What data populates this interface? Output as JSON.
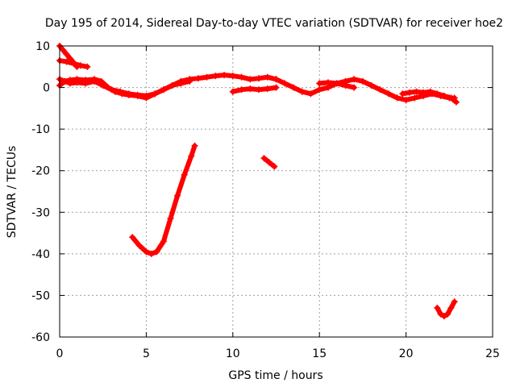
{
  "chart_data": {
    "type": "line",
    "title": "Day 195 of 2014, Sidereal Day-to-day VTEC variation (SDTVAR) for receiver hoe2",
    "xlabel": "GPS time / hours",
    "ylabel": "SDTVAR / TECUs",
    "xlim": [
      0,
      25
    ],
    "ylim": [
      -60,
      10
    ],
    "xticks": [
      "0",
      "5",
      "10",
      "15",
      "20",
      "25"
    ],
    "yticks": [
      "10",
      "0",
      "-10",
      "-20",
      "-30",
      "-40",
      "-50",
      "-60"
    ],
    "grid": true,
    "series_color": "#ff0000",
    "series": [
      {
        "x": [
          0.0,
          0.3,
          0.6,
          1.0,
          1.5,
          2.0,
          2.5,
          3.0,
          3.5,
          4.0,
          4.5,
          5.0,
          5.5,
          6.0,
          6.5,
          7.0,
          7.5,
          8.0,
          8.5,
          9.0,
          9.5,
          10.0,
          10.5,
          11.0,
          11.5,
          12.0,
          12.5
        ],
        "y": [
          0.5,
          1.5,
          1.0,
          1.2,
          1.0,
          1.5,
          0.5,
          -0.5,
          -1.0,
          -1.5,
          -1.8,
          -2.0,
          -1.5,
          -0.5,
          0.5,
          1.5,
          2.0,
          2.2,
          2.5,
          2.8,
          3.0,
          2.8,
          2.5,
          2.0,
          2.2,
          2.5,
          2.0
        ]
      },
      {
        "x": [
          0.0,
          0.3,
          0.6,
          1.0,
          1.5,
          2.0,
          2.4,
          2.8,
          3.2,
          3.6,
          4.0,
          4.5,
          5.0,
          5.5,
          6.0,
          6.5,
          7.0,
          7.5
        ],
        "y": [
          2.0,
          1.5,
          1.8,
          2.0,
          1.8,
          2.0,
          1.5,
          0.0,
          -1.0,
          -1.5,
          -1.8,
          -2.0,
          -2.5,
          -1.5,
          -0.5,
          0.5,
          1.0,
          1.5
        ]
      },
      {
        "x": [
          0.0,
          0.2,
          0.4,
          0.6,
          0.8,
          1.0
        ],
        "y": [
          10.0,
          9.0,
          8.0,
          7.0,
          6.0,
          5.0
        ]
      },
      {
        "x": [
          0.0,
          0.4,
          0.8,
          1.2,
          1.6
        ],
        "y": [
          6.5,
          6.2,
          5.8,
          5.3,
          5.0
        ]
      },
      {
        "x": [
          4.2,
          4.6,
          5.0,
          5.3,
          5.6,
          6.0,
          6.4,
          6.8,
          7.2,
          7.6,
          7.8
        ],
        "y": [
          -36.0,
          -38.0,
          -39.5,
          -40.0,
          -39.5,
          -37.0,
          -31.5,
          -26.0,
          -21.0,
          -16.5,
          -14.0
        ]
      },
      {
        "x": [
          10.0,
          10.5,
          11.0,
          11.5,
          12.0,
          12.5
        ],
        "y": [
          -1.0,
          -0.5,
          -0.3,
          -0.5,
          -0.3,
          0.0
        ]
      },
      {
        "x": [
          11.8,
          12.1,
          12.4
        ],
        "y": [
          -17.0,
          -18.0,
          -19.0
        ]
      },
      {
        "x": [
          12.5,
          13.0,
          13.5,
          14.0,
          14.5,
          15.0,
          15.5,
          16.0,
          16.5,
          17.0,
          17.5,
          18.0,
          18.5,
          19.0,
          19.5,
          20.0,
          20.5,
          21.0,
          21.5,
          22.0,
          22.5,
          22.8
        ],
        "y": [
          2.0,
          1.0,
          0.0,
          -1.0,
          -1.5,
          -0.5,
          0.0,
          1.0,
          1.5,
          2.0,
          1.5,
          0.5,
          -0.5,
          -1.5,
          -2.5,
          -3.0,
          -2.5,
          -2.0,
          -1.5,
          -2.0,
          -2.5,
          -2.5
        ]
      },
      {
        "x": [
          15.0,
          15.5,
          16.0,
          16.5,
          17.0
        ],
        "y": [
          1.0,
          1.2,
          1.0,
          0.5,
          0.0
        ]
      },
      {
        "x": [
          19.8,
          20.2,
          20.6,
          21.0,
          21.4,
          21.8,
          22.2,
          22.6,
          22.9
        ],
        "y": [
          -1.5,
          -1.2,
          -1.0,
          -1.2,
          -1.0,
          -1.5,
          -2.0,
          -2.5,
          -3.5
        ]
      },
      {
        "x": [
          21.8,
          22.0,
          22.2,
          22.4,
          22.6,
          22.8
        ],
        "y": [
          -53.0,
          -54.5,
          -55.0,
          -54.5,
          -53.0,
          -51.5
        ]
      }
    ]
  }
}
